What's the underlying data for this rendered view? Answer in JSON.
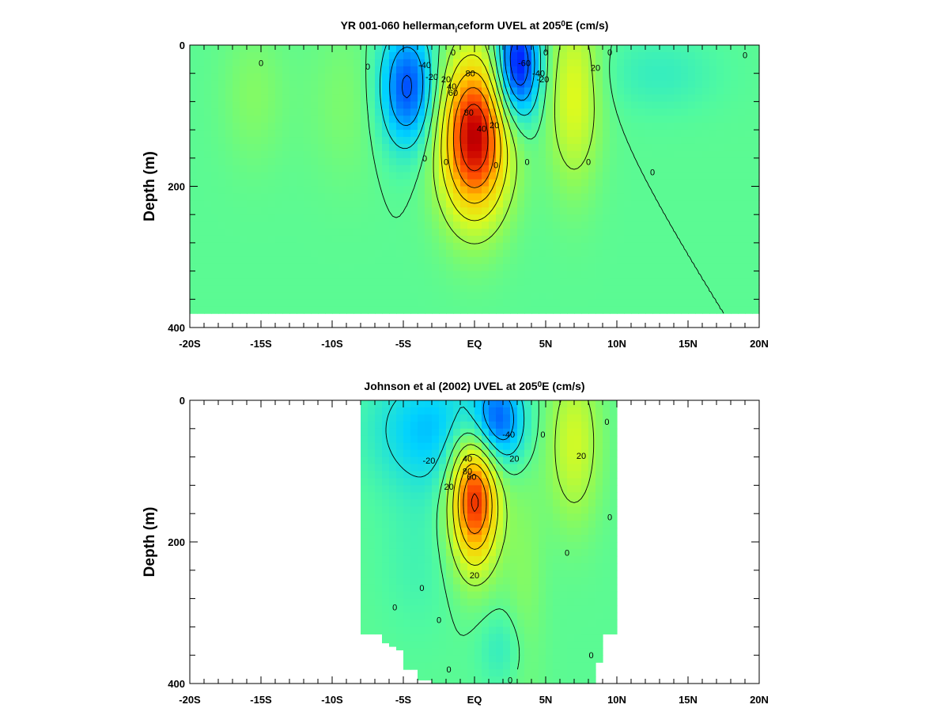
{
  "chart_data": [
    {
      "type": "heatmap",
      "title": "YR 001-060 hellerman_iceform UVEL at 205°E (cm/s)",
      "title_parts": {
        "pre": "YR 001-060 hellerman",
        "sub": "i",
        "mid": "ceform UVEL at 205",
        "sup": "0",
        "post": "E (cm/s)"
      },
      "xlabel": "",
      "ylabel": "Depth (m)",
      "xlim": [
        -20,
        20
      ],
      "ylim": [
        0,
        400
      ],
      "y_inverted": true,
      "x_ticks": [
        {
          "value": -20,
          "label": "-20S"
        },
        {
          "value": -15,
          "label": "-15S"
        },
        {
          "value": -10,
          "label": "-10S"
        },
        {
          "value": -5,
          "label": "-5S"
        },
        {
          "value": 0,
          "label": "EQ"
        },
        {
          "value": 5,
          "label": "5N"
        },
        {
          "value": 10,
          "label": "10N"
        },
        {
          "value": 15,
          "label": "15N"
        },
        {
          "value": 20,
          "label": "20N"
        }
      ],
      "y_ticks": [
        {
          "value": 0,
          "label": "0"
        },
        {
          "value": 200,
          "label": "200"
        },
        {
          "value": 400,
          "label": "400"
        }
      ],
      "data_extent": {
        "lon": [
          -20,
          20
        ],
        "depth_max": 380
      },
      "color_range": [
        -100,
        130
      ],
      "features": [
        {
          "kind": "jet",
          "lon": 0,
          "depth": 130,
          "amplitude": 120,
          "lon_width": 1.7,
          "depth_width": 80
        },
        {
          "kind": "jet",
          "lon": -4.7,
          "depth": 60,
          "amplitude": -65,
          "lon_width": 1.4,
          "depth_width": 60
        },
        {
          "kind": "jet",
          "lon": 3,
          "depth": 30,
          "amplitude": -85,
          "lon_width": 1.1,
          "depth_width": 55
        },
        {
          "kind": "jet",
          "lon": 7,
          "depth": 70,
          "amplitude": 40,
          "lon_width": 1.3,
          "depth_width": 90
        },
        {
          "kind": "jet",
          "lon": -15.5,
          "depth": 70,
          "amplitude": 12,
          "lon_width": 1.6,
          "depth_width": 70
        },
        {
          "kind": "jet",
          "lon": -9,
          "depth": 80,
          "amplitude": 10,
          "lon_width": 2.0,
          "depth_width": 80
        },
        {
          "kind": "jet",
          "lon": 13,
          "depth": 40,
          "amplitude": -12,
          "lon_width": 3.0,
          "depth_width": 40
        }
      ],
      "contour_levels": [
        -80,
        -60,
        -40,
        -20,
        0,
        20,
        40,
        60,
        80,
        100
      ],
      "contour_labels": [
        {
          "text": "0",
          "lon": -15,
          "depth": 25
        },
        {
          "text": "0",
          "lon": -7.5,
          "depth": 30
        },
        {
          "text": "-40",
          "lon": -3.5,
          "depth": 28
        },
        {
          "text": "-20",
          "lon": -3,
          "depth": 45
        },
        {
          "text": "0",
          "lon": -1.5,
          "depth": 10
        },
        {
          "text": "20",
          "lon": -2,
          "depth": 48
        },
        {
          "text": "40",
          "lon": -1.6,
          "depth": 58
        },
        {
          "text": "60",
          "lon": -1.5,
          "depth": 67
        },
        {
          "text": "80",
          "lon": -0.3,
          "depth": 40
        },
        {
          "text": "20",
          "lon": 1.4,
          "depth": 113
        },
        {
          "text": "40",
          "lon": 0.5,
          "depth": 118
        },
        {
          "text": "80",
          "lon": -0.4,
          "depth": 95
        },
        {
          "text": "-60",
          "lon": 3.5,
          "depth": 25
        },
        {
          "text": "-40",
          "lon": 4.5,
          "depth": 40
        },
        {
          "text": "-20",
          "lon": 4.8,
          "depth": 48
        },
        {
          "text": "0",
          "lon": 5,
          "depth": 10
        },
        {
          "text": "0",
          "lon": 9.5,
          "depth": 10
        },
        {
          "text": "20",
          "lon": 8.5,
          "depth": 32
        },
        {
          "text": "0",
          "lon": 19,
          "depth": 14
        },
        {
          "text": "0",
          "lon": -3.5,
          "depth": 160
        },
        {
          "text": "0",
          "lon": -2,
          "depth": 165
        },
        {
          "text": "0",
          "lon": 1.5,
          "depth": 170
        },
        {
          "text": "0",
          "lon": 3.7,
          "depth": 165
        },
        {
          "text": "0",
          "lon": 8,
          "depth": 165
        },
        {
          "text": "0",
          "lon": 12.5,
          "depth": 180
        }
      ]
    },
    {
      "type": "heatmap",
      "title": "Johnson et al (2002) UVEL at 205°E (cm/s)",
      "title_parts": {
        "pre": "Johnson et al (2002) UVEL at 205",
        "sub": "",
        "mid": "",
        "sup": "0",
        "post": "E (cm/s)"
      },
      "xlabel": "",
      "ylabel": "Depth (m)",
      "xlim": [
        -20,
        20
      ],
      "ylim": [
        0,
        400
      ],
      "y_inverted": true,
      "x_ticks": [
        {
          "value": -20,
          "label": "-20S"
        },
        {
          "value": -15,
          "label": "-15S"
        },
        {
          "value": -10,
          "label": "-10S"
        },
        {
          "value": -5,
          "label": "-5S"
        },
        {
          "value": 0,
          "label": "EQ"
        },
        {
          "value": 5,
          "label": "5N"
        },
        {
          "value": 10,
          "label": "10N"
        },
        {
          "value": 15,
          "label": "15N"
        },
        {
          "value": 20,
          "label": "20N"
        }
      ],
      "y_ticks": [
        {
          "value": 0,
          "label": "0"
        },
        {
          "value": 200,
          "label": "200"
        },
        {
          "value": 400,
          "label": "400"
        }
      ],
      "data_extent": {
        "lon": [
          -8,
          9.8
        ],
        "depth_max": 400
      },
      "color_range": [
        -100,
        130
      ],
      "features": [
        {
          "kind": "jet",
          "lon": 0,
          "depth": 135,
          "amplitude": 110,
          "lon_width": 1.2,
          "depth_width": 70
        },
        {
          "kind": "jet",
          "lon": 1.5,
          "depth": 30,
          "amplitude": -60,
          "lon_width": 1.4,
          "depth_width": 45
        },
        {
          "kind": "jet",
          "lon": -3,
          "depth": 40,
          "amplitude": -35,
          "lon_width": 3.0,
          "depth_width": 60
        },
        {
          "kind": "jet",
          "lon": 7,
          "depth": 60,
          "amplitude": 35,
          "lon_width": 1.3,
          "depth_width": 80
        },
        {
          "kind": "jet",
          "lon": 3.5,
          "depth": 250,
          "amplitude": 12,
          "lon_width": 1.0,
          "depth_width": 150
        },
        {
          "kind": "jet",
          "lon": 2,
          "depth": 350,
          "amplitude": -14,
          "lon_width": 1.2,
          "depth_width": 40
        },
        {
          "kind": "jet",
          "lon": -4,
          "depth": 220,
          "amplitude": -8,
          "lon_width": 2.0,
          "depth_width": 80
        }
      ],
      "contour_levels": [
        -80,
        -60,
        -40,
        -20,
        0,
        20,
        40,
        60,
        80,
        100
      ],
      "contour_labels": [
        {
          "text": "-40",
          "lon": 2.4,
          "depth": 48
        },
        {
          "text": "0",
          "lon": 4.8,
          "depth": 48
        },
        {
          "text": "20",
          "lon": 7.5,
          "depth": 78
        },
        {
          "text": "-20",
          "lon": -3.2,
          "depth": 85
        },
        {
          "text": "40",
          "lon": -0.5,
          "depth": 82
        },
        {
          "text": "20",
          "lon": 2.8,
          "depth": 82
        },
        {
          "text": "80",
          "lon": -0.5,
          "depth": 100
        },
        {
          "text": "60",
          "lon": -0.2,
          "depth": 108
        },
        {
          "text": "20",
          "lon": -1.8,
          "depth": 122
        },
        {
          "text": "20",
          "lon": 0,
          "depth": 247
        },
        {
          "text": "0",
          "lon": -3.7,
          "depth": 265
        },
        {
          "text": "0",
          "lon": -5.6,
          "depth": 292
        },
        {
          "text": "0",
          "lon": -2.5,
          "depth": 310
        },
        {
          "text": "0",
          "lon": 6.5,
          "depth": 215
        },
        {
          "text": "0",
          "lon": 9.5,
          "depth": 165
        },
        {
          "text": "0",
          "lon": 9.3,
          "depth": 30
        },
        {
          "text": "0",
          "lon": 8.2,
          "depth": 360
        },
        {
          "text": "0",
          "lon": -1.8,
          "depth": 380
        },
        {
          "text": "0",
          "lon": 2.5,
          "depth": 395
        }
      ]
    }
  ]
}
